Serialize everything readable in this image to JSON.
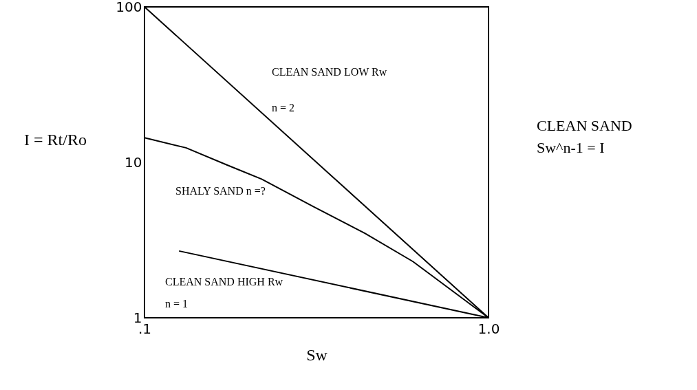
{
  "chart_data": {
    "type": "line",
    "xlabel": "Sw",
    "ylabel": "I = Rt/Ro",
    "log": "xy",
    "xlim": [
      0.1,
      1
    ],
    "ylim": [
      1,
      100
    ],
    "xticks": [
      {
        "value": 0.1,
        "label": ".1"
      },
      {
        "value": 1,
        "label": "1.0"
      }
    ],
    "yticks": [
      1,
      10,
      100
    ],
    "grid": false,
    "series": [
      {
        "color": "#000000",
        "x": [
          0.1,
          1
        ],
        "values": [
          100,
          1
        ]
      },
      {
        "color": "#000000",
        "x": [
          0.1,
          0.132,
          0.174,
          0.219,
          0.309,
          0.437,
          0.603,
          1
        ],
        "values": [
          14.4,
          12.4,
          9.6,
          7.8,
          5.2,
          3.5,
          2.3,
          1
        ]
      },
      {
        "color": "#000000",
        "x": [
          0.126,
          1
        ],
        "values": [
          2.69,
          1
        ]
      }
    ],
    "annotations": [
      "CLEAN SAND LOW Rw",
      "n = 2",
      "SHALY SAND n =?",
      "CLEAN SAND HIGH Rw",
      "n = 1",
      "CLEAN SAND",
      "Sw^n-1 = I"
    ]
  }
}
